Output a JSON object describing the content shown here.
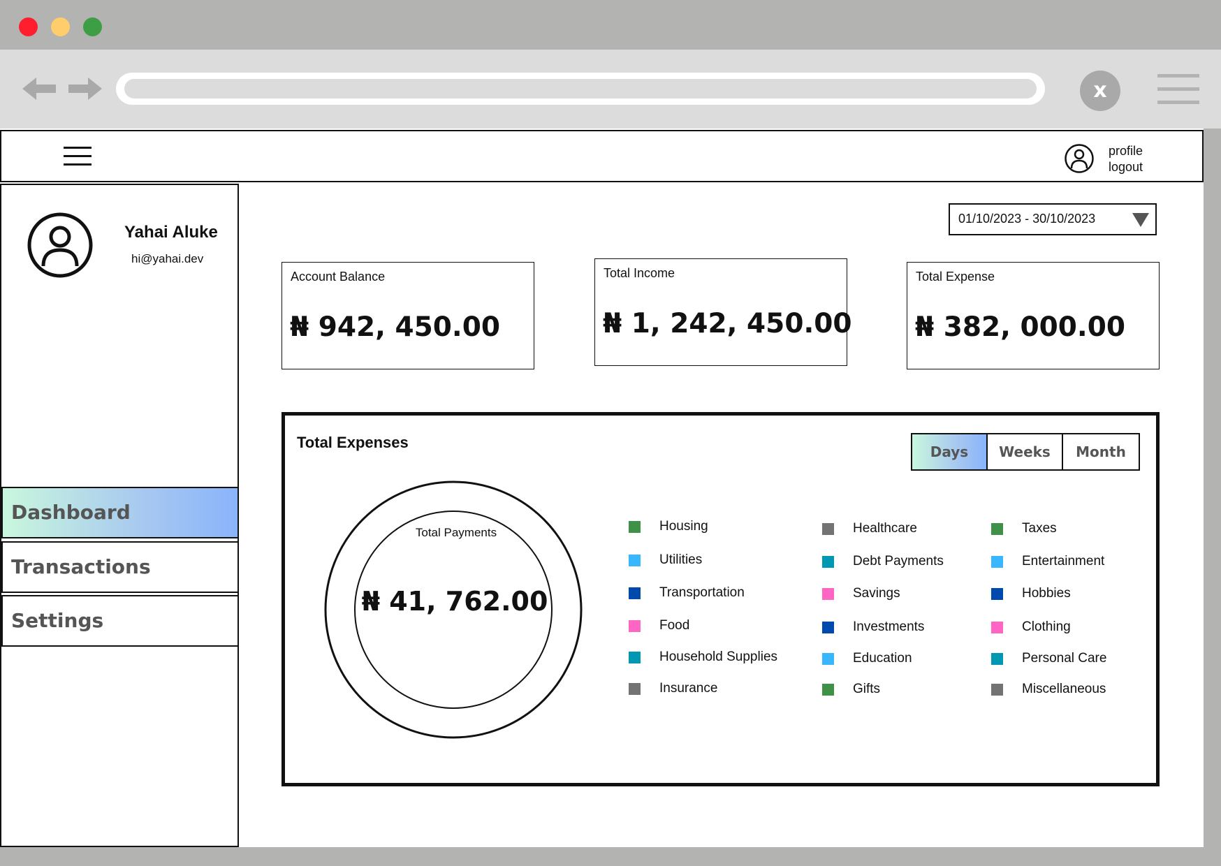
{
  "browser": {
    "close_label": "x"
  },
  "header": {
    "profile_label": "profile",
    "logout_label": "logout"
  },
  "user": {
    "name": "Yahai Aluke",
    "email": "hi@yahai.dev"
  },
  "sidebar": {
    "items": [
      {
        "label": "Dashboard",
        "active": true
      },
      {
        "label": "Transactions",
        "active": false
      },
      {
        "label": "Settings",
        "active": false
      }
    ]
  },
  "date_range": {
    "value": "01/10/2023 - 30/10/2023"
  },
  "stats": [
    {
      "label": "Account Balance",
      "value": "₦ 942, 450.00"
    },
    {
      "label": "Total Income",
      "value": "₦ 1, 242, 450.00"
    },
    {
      "label": "Total Expense",
      "value": "₦ 382, 000.00"
    }
  ],
  "expenses": {
    "title": "Total Expenses",
    "periods": [
      {
        "label": "Days",
        "active": true
      },
      {
        "label": "Weeks",
        "active": false
      },
      {
        "label": "Month",
        "active": false
      }
    ],
    "donut_label": "Total Payments",
    "donut_value": "₦ 41, 762.00",
    "legend": [
      {
        "label": "Housing",
        "color": "#3f9147"
      },
      {
        "label": "Utilities",
        "color": "#38b6ff"
      },
      {
        "label": "Transportation",
        "color": "#004aad"
      },
      {
        "label": "Food",
        "color": "#ff66c4"
      },
      {
        "label": "Household Supplies",
        "color": "#0097b2"
      },
      {
        "label": "Insurance",
        "color": "#737373"
      },
      {
        "label": "Healthcare",
        "color": "#737373"
      },
      {
        "label": "Debt Payments",
        "color": "#0097b2"
      },
      {
        "label": "Savings",
        "color": "#ff66c4"
      },
      {
        "label": "Investments",
        "color": "#004aad"
      },
      {
        "label": "Education",
        "color": "#38b6ff"
      },
      {
        "label": "Gifts",
        "color": "#3f9147"
      },
      {
        "label": "Taxes",
        "color": "#3f9147"
      },
      {
        "label": "Entertainment",
        "color": "#38b6ff"
      },
      {
        "label": "Hobbies",
        "color": "#004aad"
      },
      {
        "label": "Clothing",
        "color": "#ff66c4"
      },
      {
        "label": "Personal Care",
        "color": "#0097b2"
      },
      {
        "label": "Miscellaneous",
        "color": "#737373"
      }
    ]
  }
}
